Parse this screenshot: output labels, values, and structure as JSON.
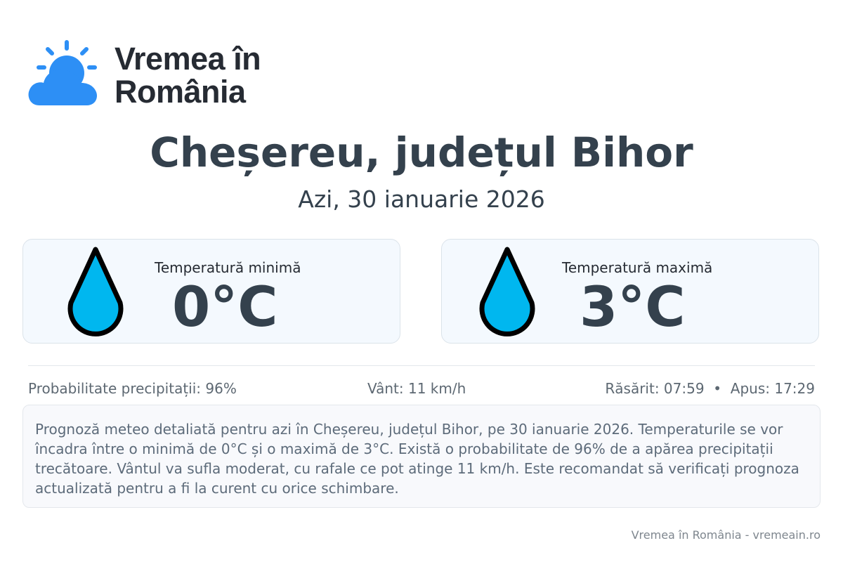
{
  "brand": {
    "line1": "Vremea în",
    "line2": "România",
    "logo_icon": "sun-behind-cloud-icon",
    "accent": "#2d8ff5"
  },
  "location_title": "Cheșereu, județul Bihor",
  "date_label": "Azi, 30 ianuarie 2026",
  "cards": [
    {
      "label": "Temperatură minimă",
      "value": "0°C",
      "icon": "water-drop-icon"
    },
    {
      "label": "Temperatură maximă",
      "value": "3°C",
      "icon": "water-drop-icon"
    }
  ],
  "stats": {
    "precipitation": "Probabilitate precipitații: 96%",
    "wind": "Vânt: 11 km/h",
    "sun": "Răsărit: 07:59  •  Apus: 17:29"
  },
  "description": "Prognoză meteo detaliată pentru azi în Cheșereu, județul Bihor, pe 30 ianuarie 2026. Temperaturile se vor încadra între o minimă de 0°C și o maximă de 3°C. Există o probabilitate de 96% de a apărea precipitații trecătoare. Vântul va sufla moderat, cu rafale ce pot atinge 11 km/h. Este recomandat să verificați prognoza actualizată pentru a fi la curent cu orice schimbare.",
  "footer": "Vremea în România - vremeain.ro"
}
